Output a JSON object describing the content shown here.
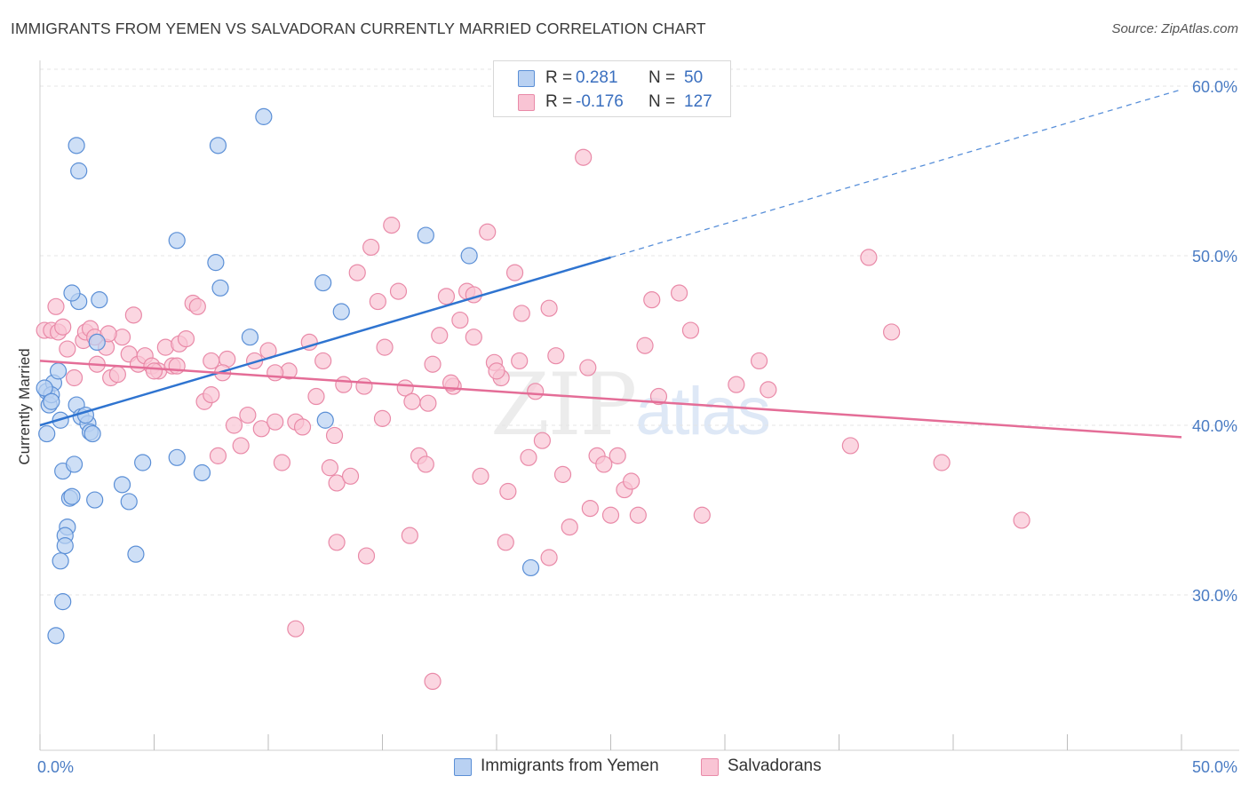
{
  "title": "IMMIGRANTS FROM YEMEN VS SALVADORAN CURRENTLY MARRIED CORRELATION CHART",
  "source": "Source: ZipAtlas.com",
  "watermark": {
    "zip": "ZIP",
    "atlas": "atlas"
  },
  "legend": {
    "rows": [
      {
        "r_label": "R =",
        "r_value": "0.281",
        "n_label": "N =",
        "n_value": "50",
        "color": "#b9d1f2"
      },
      {
        "r_label": "R =",
        "r_value": "-0.176",
        "n_label": "N =",
        "n_value": "127",
        "color": "#f9c4d4"
      }
    ]
  },
  "bottom_legend": [
    {
      "label": "Immigrants from Yemen",
      "color": "#b9d1f2"
    },
    {
      "label": "Salvadorans",
      "color": "#f9c4d4"
    }
  ],
  "colors": {
    "blue_fill": "#b9d1f2",
    "blue_stroke": "#5b8fd6",
    "blue_line": "#2f74d0",
    "pink_fill": "#f9c4d4",
    "pink_stroke": "#e98aa8",
    "pink_line": "#e46d97",
    "grid": "#e4e4e4",
    "axis_text": "#4a7cc4"
  },
  "chart_data": {
    "type": "scatter",
    "title": "IMMIGRANTS FROM YEMEN VS SALVADORAN CURRENTLY MARRIED CORRELATION CHART",
    "xlabel": "",
    "ylabel": "Currently Married",
    "xlim": [
      0,
      50
    ],
    "ylim": [
      20,
      63
    ],
    "x_tick_labels": [
      "0.0%",
      "50.0%"
    ],
    "y_ticks": [
      30,
      40,
      50,
      60
    ],
    "y_tick_labels": [
      "30.0%",
      "40.0%",
      "50.0%",
      "60.0%"
    ],
    "grid": true,
    "legend_position": "top-center",
    "series": [
      {
        "name": "Immigrants from Yemen",
        "R": 0.281,
        "N": 50,
        "trend": {
          "x": [
            0,
            25
          ],
          "y": [
            40.0,
            49.9
          ],
          "dashed_extension_to": [
            50,
            59.8
          ]
        },
        "points": [
          [
            0.3,
            42.0
          ],
          [
            0.4,
            41.2
          ],
          [
            0.3,
            39.5
          ],
          [
            0.6,
            42.5
          ],
          [
            0.5,
            41.8
          ],
          [
            0.8,
            43.2
          ],
          [
            0.9,
            40.3
          ],
          [
            1.0,
            37.3
          ],
          [
            1.2,
            34.0
          ],
          [
            1.1,
            33.5
          ],
          [
            1.3,
            35.7
          ],
          [
            1.4,
            35.8
          ],
          [
            1.5,
            37.7
          ],
          [
            1.6,
            41.2
          ],
          [
            1.7,
            47.3
          ],
          [
            1.8,
            40.5
          ],
          [
            2.1,
            40.1
          ],
          [
            2.2,
            39.6
          ],
          [
            2.3,
            39.5
          ],
          [
            2.4,
            35.6
          ],
          [
            2.5,
            44.9
          ],
          [
            2.6,
            47.4
          ],
          [
            1.1,
            32.9
          ],
          [
            0.9,
            32.0
          ],
          [
            1.0,
            29.6
          ],
          [
            0.7,
            27.6
          ],
          [
            1.7,
            55.0
          ],
          [
            1.6,
            56.5
          ],
          [
            1.4,
            47.8
          ],
          [
            3.6,
            36.5
          ],
          [
            3.9,
            35.5
          ],
          [
            4.2,
            32.4
          ],
          [
            4.5,
            37.8
          ],
          [
            6.0,
            50.9
          ],
          [
            7.1,
            37.2
          ],
          [
            7.7,
            49.6
          ],
          [
            7.9,
            48.1
          ],
          [
            9.2,
            45.2
          ],
          [
            9.8,
            58.2
          ],
          [
            7.8,
            56.5
          ],
          [
            12.4,
            48.4
          ],
          [
            12.5,
            40.3
          ],
          [
            13.2,
            46.7
          ],
          [
            16.9,
            51.2
          ],
          [
            18.8,
            50.0
          ],
          [
            21.5,
            31.6
          ],
          [
            6.0,
            38.1
          ],
          [
            2.0,
            40.6
          ],
          [
            0.2,
            42.2
          ],
          [
            0.5,
            41.4
          ]
        ]
      },
      {
        "name": "Salvadorans",
        "R": -0.176,
        "N": 127,
        "trend": {
          "x": [
            0,
            50
          ],
          "y": [
            43.8,
            39.3
          ]
        },
        "points": [
          [
            0.2,
            45.6
          ],
          [
            0.5,
            45.6
          ],
          [
            0.7,
            47.0
          ],
          [
            0.8,
            45.5
          ],
          [
            1.0,
            45.8
          ],
          [
            1.2,
            44.5
          ],
          [
            1.5,
            42.8
          ],
          [
            1.9,
            45.0
          ],
          [
            2.0,
            45.5
          ],
          [
            2.2,
            45.7
          ],
          [
            2.5,
            43.6
          ],
          [
            2.9,
            44.6
          ],
          [
            3.1,
            42.8
          ],
          [
            3.4,
            43.0
          ],
          [
            3.6,
            45.2
          ],
          [
            3.9,
            44.2
          ],
          [
            4.1,
            46.5
          ],
          [
            4.3,
            43.6
          ],
          [
            4.6,
            44.1
          ],
          [
            4.9,
            43.5
          ],
          [
            5.2,
            43.2
          ],
          [
            5.5,
            44.6
          ],
          [
            5.8,
            43.5
          ],
          [
            6.1,
            44.8
          ],
          [
            6.4,
            45.1
          ],
          [
            6.7,
            47.2
          ],
          [
            6.9,
            47.0
          ],
          [
            7.2,
            41.4
          ],
          [
            7.5,
            41.8
          ],
          [
            7.8,
            38.2
          ],
          [
            8.2,
            43.9
          ],
          [
            8.5,
            40.0
          ],
          [
            8.8,
            38.8
          ],
          [
            9.1,
            40.6
          ],
          [
            9.4,
            43.8
          ],
          [
            9.7,
            39.8
          ],
          [
            10.0,
            44.4
          ],
          [
            10.3,
            40.2
          ],
          [
            10.6,
            37.8
          ],
          [
            10.9,
            43.2
          ],
          [
            11.2,
            40.2
          ],
          [
            11.5,
            39.9
          ],
          [
            11.8,
            44.9
          ],
          [
            12.1,
            41.7
          ],
          [
            12.4,
            43.8
          ],
          [
            12.7,
            37.5
          ],
          [
            13.0,
            36.6
          ],
          [
            13.3,
            42.4
          ],
          [
            13.6,
            37.0
          ],
          [
            13.9,
            49.0
          ],
          [
            14.2,
            42.3
          ],
          [
            14.5,
            50.5
          ],
          [
            14.8,
            47.3
          ],
          [
            15.1,
            44.6
          ],
          [
            15.4,
            51.8
          ],
          [
            15.7,
            47.9
          ],
          [
            16.0,
            42.2
          ],
          [
            16.3,
            41.4
          ],
          [
            16.6,
            38.2
          ],
          [
            16.9,
            37.7
          ],
          [
            17.2,
            43.6
          ],
          [
            17.5,
            45.3
          ],
          [
            17.8,
            47.6
          ],
          [
            18.1,
            42.3
          ],
          [
            18.4,
            46.2
          ],
          [
            18.7,
            47.9
          ],
          [
            19.0,
            47.7
          ],
          [
            19.3,
            37.0
          ],
          [
            19.6,
            51.4
          ],
          [
            19.9,
            43.7
          ],
          [
            20.2,
            42.8
          ],
          [
            20.5,
            36.1
          ],
          [
            20.8,
            49.0
          ],
          [
            21.1,
            46.6
          ],
          [
            21.4,
            38.1
          ],
          [
            21.7,
            42.0
          ],
          [
            22.0,
            39.1
          ],
          [
            22.3,
            46.9
          ],
          [
            22.6,
            44.1
          ],
          [
            22.9,
            37.1
          ],
          [
            23.2,
            34.0
          ],
          [
            23.5,
            59.2
          ],
          [
            23.8,
            55.8
          ],
          [
            24.1,
            35.1
          ],
          [
            24.4,
            38.2
          ],
          [
            24.7,
            37.7
          ],
          [
            25.0,
            34.7
          ],
          [
            25.3,
            38.2
          ],
          [
            25.6,
            36.2
          ],
          [
            25.9,
            36.7
          ],
          [
            26.2,
            34.7
          ],
          [
            26.5,
            44.7
          ],
          [
            26.8,
            47.4
          ],
          [
            27.1,
            41.7
          ],
          [
            28.0,
            47.8
          ],
          [
            28.5,
            45.6
          ],
          [
            29.0,
            34.7
          ],
          [
            30.5,
            42.4
          ],
          [
            31.5,
            43.8
          ],
          [
            31.9,
            42.1
          ],
          [
            35.5,
            38.8
          ],
          [
            36.3,
            49.9
          ],
          [
            37.3,
            45.5
          ],
          [
            39.5,
            37.8
          ],
          [
            43.0,
            34.4
          ],
          [
            17.2,
            24.9
          ],
          [
            11.2,
            28.0
          ],
          [
            13.0,
            33.1
          ],
          [
            14.3,
            32.3
          ],
          [
            16.2,
            33.5
          ],
          [
            20.4,
            33.1
          ],
          [
            22.3,
            32.2
          ],
          [
            5.0,
            43.2
          ],
          [
            6.0,
            43.5
          ],
          [
            8.0,
            43.1
          ],
          [
            10.3,
            43.1
          ],
          [
            12.9,
            39.4
          ],
          [
            15.0,
            40.4
          ],
          [
            17.0,
            41.3
          ],
          [
            18.0,
            42.5
          ],
          [
            19.0,
            45.2
          ],
          [
            24.0,
            43.4
          ],
          [
            21.0,
            43.8
          ],
          [
            20.0,
            43.2
          ],
          [
            7.5,
            43.8
          ],
          [
            2.4,
            45.2
          ],
          [
            3.0,
            45.4
          ]
        ]
      }
    ]
  }
}
